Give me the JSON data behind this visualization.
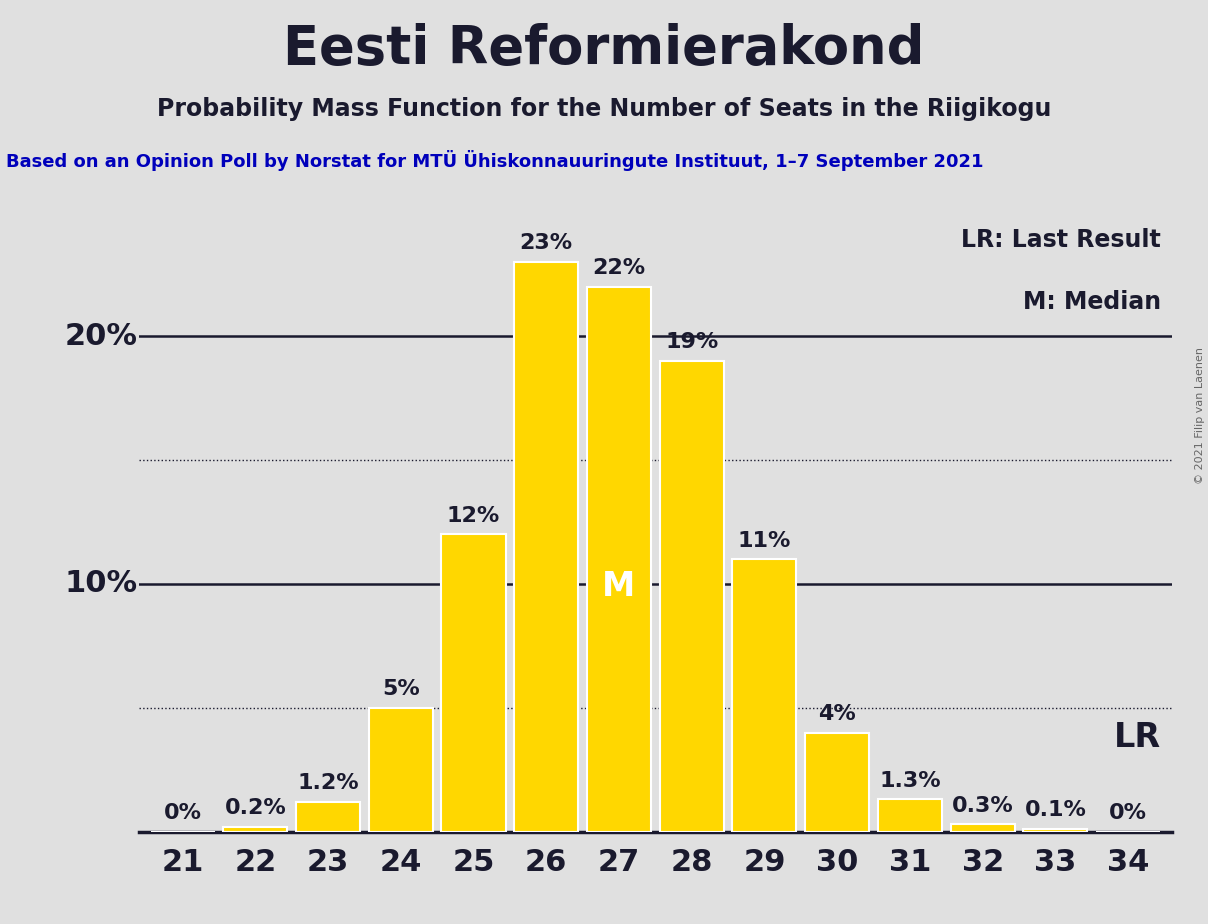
{
  "title": "Eesti Reformierakond",
  "subtitle": "Probability Mass Function for the Number of Seats in the Riigikogu",
  "source_line": "Based on an Opinion Poll by Norstat for MTÜ Ühiskonnauuringute Instituut, 1–7 September 2021",
  "copyright": "© 2021 Filip van Laenen",
  "categories": [
    21,
    22,
    23,
    24,
    25,
    26,
    27,
    28,
    29,
    30,
    31,
    32,
    33,
    34
  ],
  "values": [
    0.0,
    0.2,
    1.2,
    5.0,
    12.0,
    23.0,
    22.0,
    19.0,
    11.0,
    4.0,
    1.3,
    0.3,
    0.1,
    0.0
  ],
  "bar_color": "#FFD700",
  "bar_edge_color": "#FFFFFF",
  "background_color": "#E0E0E0",
  "title_color": "#1A1A2E",
  "subtitle_color": "#1A1A2E",
  "source_color": "#0000BB",
  "text_color": "#1A1A2E",
  "median_seat": 27,
  "lr_seat": 34,
  "ylim_max": 25,
  "solid_gridlines": [
    20.0,
    10.0
  ],
  "dotted_gridlines": [
    15.0,
    5.0
  ],
  "legend_lr": "LR: Last Result",
  "legend_m": "M: Median",
  "lr_label": "LR",
  "title_fontsize": 38,
  "subtitle_fontsize": 17,
  "source_fontsize": 13,
  "bar_label_fontsize": 16,
  "xtick_fontsize": 22,
  "ytick_fontsize": 22,
  "legend_fontsize": 17,
  "median_label_fontsize": 24,
  "lr_label_fontsize": 24
}
